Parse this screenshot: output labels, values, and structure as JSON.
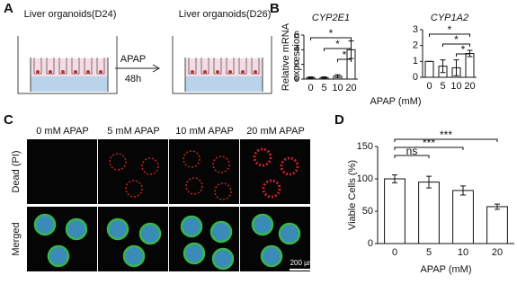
{
  "figure": {
    "panel_labels": [
      "A",
      "B",
      "C",
      "D"
    ],
    "panel_a": {
      "left_title": "Liver organoids(D24)",
      "right_title": "Liver organoids(D26)",
      "treatment": "APAP",
      "duration": "48h"
    },
    "panel_c": {
      "columns": [
        "0 mM APAP",
        "5 mM APAP",
        "10 mM APAP",
        "20 mM APAP"
      ],
      "rows": [
        "Dead (PI)",
        "Merged"
      ],
      "scale_bar": "200 µm"
    }
  },
  "chart_data": [
    {
      "type": "bar",
      "title": "CYP2E1",
      "y_label": [
        "Relative mRNA",
        "expression"
      ],
      "x_label": "APAP (mM)",
      "categories": [
        "0",
        "5",
        "10",
        "20"
      ],
      "values": [
        0.2,
        0.2,
        0.4,
        4.0
      ],
      "errors": [
        0.1,
        0.1,
        0.2,
        1.2
      ],
      "ylim": [
        0,
        6
      ],
      "yticks": [
        0,
        2,
        4,
        6
      ],
      "significance": [
        {
          "between": [
            "0",
            "20"
          ],
          "label": "*"
        },
        {
          "between": [
            "5",
            "20"
          ],
          "label": "*"
        },
        {
          "between": [
            "10",
            "20"
          ],
          "label": "*"
        }
      ]
    },
    {
      "type": "bar",
      "title": "CYP1A2",
      "categories": [
        "0",
        "5",
        "10",
        "20"
      ],
      "values": [
        1.0,
        0.7,
        0.6,
        1.5
      ],
      "errors": [
        0.0,
        0.4,
        0.5,
        0.2
      ],
      "ylim": [
        0,
        3
      ],
      "yticks": [
        0,
        1,
        2,
        3
      ],
      "significance": [
        {
          "between": [
            "0",
            "20"
          ],
          "label": "*"
        },
        {
          "between": [
            "5",
            "20"
          ],
          "label": "*"
        },
        {
          "between": [
            "10",
            "20"
          ],
          "label": "*"
        }
      ]
    },
    {
      "type": "bar",
      "y_label": [
        "Viable Cells (%)"
      ],
      "x_label": "APAP (mM)",
      "categories": [
        "0",
        "5",
        "10",
        "20"
      ],
      "values": [
        100,
        95,
        82,
        57
      ],
      "errors": [
        6,
        9,
        7,
        4
      ],
      "ylim": [
        0,
        150
      ],
      "yticks": [
        0,
        50,
        100,
        150
      ],
      "significance": [
        {
          "between": [
            "0",
            "20"
          ],
          "label": "***"
        },
        {
          "between": [
            "0",
            "10"
          ],
          "label": "***"
        },
        {
          "between": [
            "0",
            "5"
          ],
          "label": "ns"
        }
      ]
    }
  ]
}
